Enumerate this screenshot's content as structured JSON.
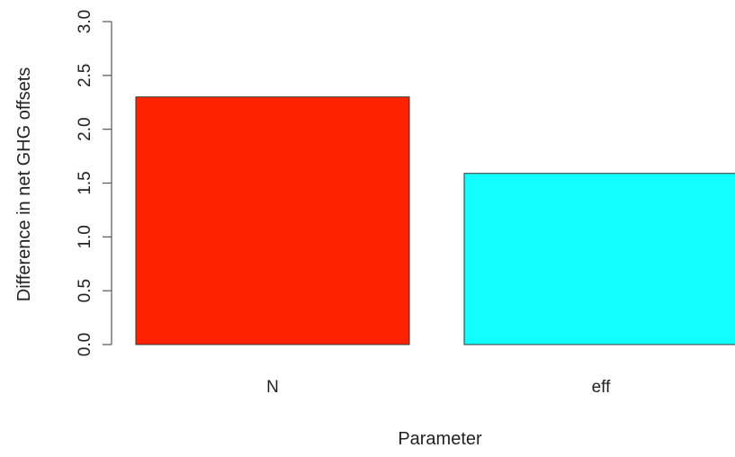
{
  "chart_data": {
    "type": "bar",
    "title": "",
    "xlabel": "Parameter",
    "ylabel": "Difference in net GHG offsets",
    "categories": [
      "N",
      "eff"
    ],
    "values": [
      2.3,
      1.59
    ],
    "colors": [
      "#ff2200",
      "#11fffe"
    ],
    "ylim": [
      0,
      3.0
    ],
    "yticks": [
      "0.0",
      "0.5",
      "1.0",
      "1.5",
      "2.0",
      "2.5",
      "3.0"
    ],
    "grid": false,
    "legend": "none"
  }
}
